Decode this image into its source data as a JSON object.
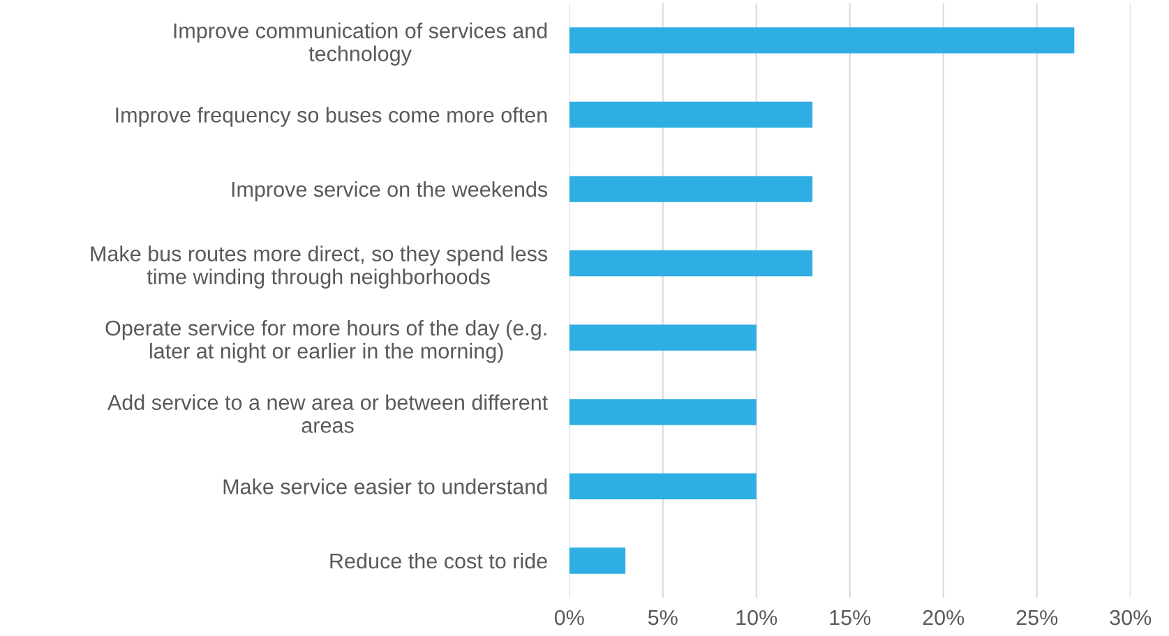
{
  "chart_data": {
    "type": "bar",
    "orientation": "horizontal",
    "categories": [
      "Improve communication of services and\ntechnology",
      "Improve frequency so buses come more often",
      "Improve service on the weekends",
      "Make bus routes more direct, so they spend less\ntime winding through neighborhoods",
      "Operate service for more hours of the day (e.g.\nlater at night or earlier in the morning)",
      "Add service to a new area or between different\nareas",
      "Make service easier to understand",
      "Reduce the cost to ride"
    ],
    "values": [
      27,
      13,
      13,
      13,
      10,
      10,
      10,
      3
    ],
    "color": "#2eaee2",
    "xlim": [
      0,
      30
    ],
    "xticks": [
      {
        "value": 0,
        "label": "0%"
      },
      {
        "value": 5,
        "label": "5%"
      },
      {
        "value": 10,
        "label": "10%"
      },
      {
        "value": 15,
        "label": "15%"
      },
      {
        "value": 20,
        "label": "20%"
      },
      {
        "value": 25,
        "label": "25%"
      },
      {
        "value": 30,
        "label": "30%"
      }
    ],
    "grid": "x",
    "legend": false
  }
}
